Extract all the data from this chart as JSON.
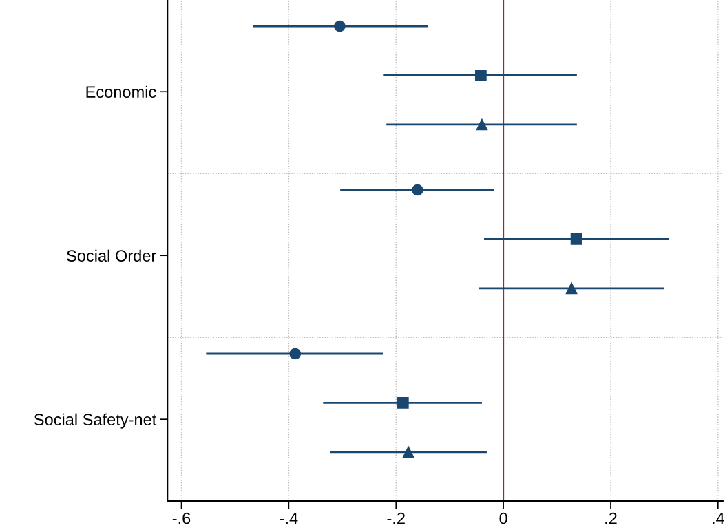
{
  "chart_data": {
    "type": "scatter",
    "orientation": "horizontal",
    "categories": [
      "Economic",
      "Social Order",
      "Social Safety-net"
    ],
    "series": [
      {
        "color": "#1a476f",
        "marker": "circle",
        "values": [
          -0.305,
          -0.16,
          -0.388
        ],
        "errors": [
          [
            -0.467,
            -0.141
          ],
          [
            -0.304,
            -0.017
          ],
          [
            -0.554,
            -0.224
          ]
        ]
      },
      {
        "color": "#1a476f",
        "marker": "square",
        "values": [
          -0.042,
          0.136,
          -0.187
        ],
        "errors": [
          [
            -0.223,
            0.137
          ],
          [
            -0.036,
            0.309
          ],
          [
            -0.336,
            -0.04
          ]
        ]
      },
      {
        "color": "#1a476f",
        "marker": "triangle",
        "values": [
          -0.04,
          0.127,
          -0.177
        ],
        "errors": [
          [
            -0.218,
            0.137
          ],
          [
            -0.045,
            0.3
          ],
          [
            -0.323,
            -0.031
          ]
        ]
      }
    ],
    "xlim": [
      -0.626,
      0.409
    ],
    "xticks": [
      {
        "value": -0.6,
        "label": "-.6"
      },
      {
        "value": -0.4,
        "label": "-.4"
      },
      {
        "value": -0.2,
        "label": "-.2"
      },
      0,
      {
        "value": 0.2,
        "label": ".2"
      },
      {
        "value": 0.4,
        "label": ".4"
      }
    ],
    "ref_lines": [
      {
        "axis": "x",
        "value": 0,
        "color": "#c8102e"
      }
    ],
    "grid": true
  }
}
